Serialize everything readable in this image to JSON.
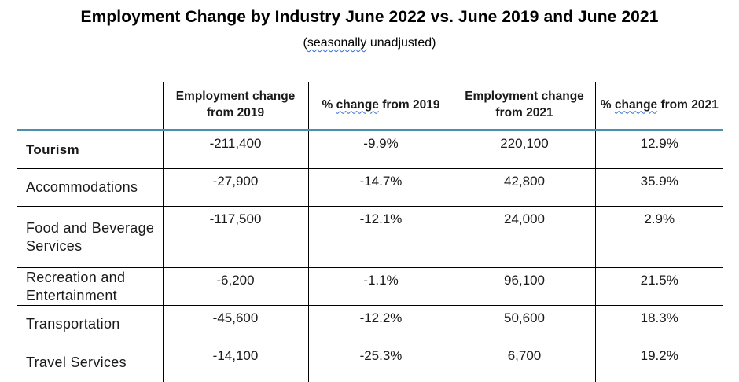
{
  "title": "Employment Change by Industry June 2022 vs. June 2019 and June 2021",
  "subtitle": {
    "open": "(",
    "squiggle_word": "seasonally",
    "rest": " unadjusted)"
  },
  "table": {
    "headers": [
      {
        "pre": "",
        "squiggle": "",
        "post": ""
      },
      {
        "pre": "Employment change from 2019",
        "squiggle": "",
        "post": ""
      },
      {
        "pre": "% ",
        "squiggle": "change",
        "post": " from 2019"
      },
      {
        "pre": "Employment change from 2021",
        "squiggle": "",
        "post": ""
      },
      {
        "pre": "% ",
        "squiggle": "change",
        "post": " from 2021"
      }
    ],
    "rows": [
      {
        "label": "Tourism",
        "bold": true,
        "values": [
          "-211,400",
          "-9.9%",
          "220,100",
          "12.9%"
        ]
      },
      {
        "label": "Accommodations",
        "bold": false,
        "values": [
          "-27,900",
          "-14.7%",
          "42,800",
          "35.9%"
        ]
      },
      {
        "label": "Food and Beverage Services",
        "bold": false,
        "values": [
          "-117,500",
          "-12.1%",
          "24,000",
          "2.9%"
        ]
      },
      {
        "label": "Recreation and Entertainment",
        "bold": false,
        "values": [
          "-6,200",
          "-1.1%",
          "96,100",
          "21.5%"
        ]
      },
      {
        "label": "Transportation",
        "bold": false,
        "values": [
          "-45,600",
          "-12.2%",
          "50,600",
          "18.3%"
        ]
      },
      {
        "label": "Travel Services",
        "bold": false,
        "values": [
          "-14,100",
          "-25.3%",
          "6,700",
          "19.2%"
        ]
      }
    ]
  },
  "colors": {
    "header_rule": "#4a90a8",
    "spellcheck_underline": "#2f6bd0"
  }
}
